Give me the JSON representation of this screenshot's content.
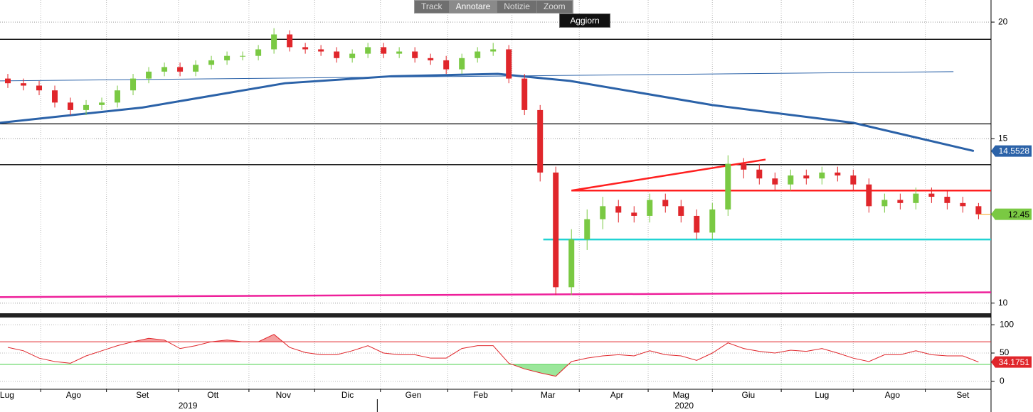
{
  "toolbar": {
    "buttons": [
      "Track",
      "Annotare",
      "Notizie",
      "Zoom"
    ],
    "refresh": "Aggiorn"
  },
  "chart_data": [
    {
      "type": "candlestick",
      "log_scale": true,
      "ylim": [
        9.77,
        21.12
      ],
      "yticks": [
        10,
        15,
        20
      ],
      "grid": true,
      "xlim": [
        0,
        63.3
      ],
      "xticks": [
        {
          "value": 0.45,
          "label": "Lug"
        },
        {
          "value": 4.7,
          "label": "Ago"
        },
        {
          "value": 9.1,
          "label": "Set"
        },
        {
          "value": 13.6,
          "label": "Ott"
        },
        {
          "value": 18.1,
          "label": "Nov"
        },
        {
          "value": 22.2,
          "label": "Dic"
        },
        {
          "value": 26.4,
          "label": "Gen"
        },
        {
          "value": 30.7,
          "label": "Feb"
        },
        {
          "value": 35.0,
          "label": "Mar"
        },
        {
          "value": 39.4,
          "label": "Apr"
        },
        {
          "value": 43.5,
          "label": "Mag"
        },
        {
          "value": 47.8,
          "label": "Giu"
        },
        {
          "value": 52.5,
          "label": "Lug"
        },
        {
          "value": 57.0,
          "label": "Ago"
        },
        {
          "value": 61.5,
          "label": "Set"
        }
      ],
      "xgrid": [
        2.6,
        6.8,
        11.4,
        15.9,
        20.1,
        24.3,
        28.6,
        32.7,
        37.0,
        41.4,
        45.5,
        49.9,
        54.5,
        59.1
      ],
      "years": [
        {
          "value": 12.0,
          "label": "2019"
        },
        {
          "value": 43.7,
          "label": "2020"
        }
      ],
      "year_divider": 24.1,
      "up_color": "#7ac943",
      "down_color": "#e0262b",
      "x": [
        0.5,
        1.5,
        2.5,
        3.5,
        4.5,
        5.5,
        6.5,
        7.5,
        8.5,
        9.5,
        10.5,
        11.5,
        12.5,
        13.5,
        14.5,
        15.5,
        16.5,
        17.5,
        18.5,
        19.5,
        20.5,
        21.5,
        22.5,
        23.5,
        24.5,
        25.5,
        26.5,
        27.5,
        28.5,
        29.5,
        30.5,
        31.5,
        32.5,
        33.5,
        34.5,
        35.5,
        36.5,
        37.5,
        38.5,
        39.5,
        40.5,
        41.5,
        42.5,
        43.5,
        44.5,
        45.5,
        46.5,
        47.5,
        48.5,
        49.5,
        50.5,
        51.5,
        52.5,
        53.5,
        54.5,
        55.5,
        56.5,
        57.5,
        58.5,
        59.5,
        60.5,
        61.5,
        62.5
      ],
      "open": [
        17.4,
        17.2,
        17.1,
        16.9,
        16.4,
        16.1,
        16.3,
        16.4,
        16.9,
        17.4,
        17.7,
        17.9,
        17.7,
        18.0,
        18.2,
        18.4,
        18.4,
        18.7,
        19.4,
        18.8,
        18.7,
        18.6,
        18.3,
        18.5,
        18.8,
        18.5,
        18.6,
        18.3,
        18.2,
        17.8,
        18.3,
        18.6,
        18.7,
        17.4,
        16.1,
        13.8,
        10.4,
        11.7,
        12.3,
        12.7,
        12.5,
        12.4,
        12.9,
        12.7,
        12.4,
        11.9,
        12.6,
        14.1,
        13.9,
        13.6,
        13.4,
        13.7,
        13.6,
        13.8,
        13.7,
        13.4,
        12.7,
        12.9,
        12.8,
        13.1,
        13.0,
        12.8,
        12.7
      ],
      "high": [
        17.6,
        17.4,
        17.3,
        17.1,
        16.6,
        16.5,
        16.6,
        17.1,
        17.6,
        17.9,
        18.1,
        18.1,
        18.2,
        18.4,
        18.6,
        18.6,
        18.9,
        19.7,
        19.6,
        19.0,
        18.9,
        18.8,
        18.7,
        19.0,
        19.0,
        18.8,
        18.8,
        18.5,
        18.4,
        18.5,
        18.8,
        19.0,
        18.9,
        17.6,
        16.3,
        14.0,
        12.0,
        12.6,
        13.0,
        12.9,
        12.7,
        13.1,
        13.1,
        12.9,
        12.6,
        12.8,
        14.4,
        14.3,
        14.1,
        13.8,
        13.9,
        13.9,
        14.0,
        14.0,
        13.9,
        13.6,
        13.1,
        13.1,
        13.3,
        13.3,
        13.2,
        13.0,
        12.8
      ],
      "low": [
        17.0,
        16.9,
        16.7,
        16.2,
        15.9,
        15.9,
        16.1,
        16.2,
        16.7,
        17.2,
        17.5,
        17.5,
        17.5,
        17.8,
        18.0,
        18.2,
        18.2,
        18.5,
        18.6,
        18.5,
        18.4,
        18.1,
        18.1,
        18.3,
        18.3,
        18.3,
        18.1,
        18.0,
        17.6,
        17.6,
        18.1,
        18.4,
        17.2,
        15.9,
        13.5,
        10.2,
        10.2,
        11.4,
        12.0,
        12.2,
        12.2,
        12.2,
        12.5,
        12.2,
        11.7,
        11.7,
        12.4,
        13.6,
        13.4,
        13.2,
        13.2,
        13.4,
        13.4,
        13.5,
        13.2,
        12.5,
        12.5,
        12.6,
        12.6,
        12.8,
        12.6,
        12.5,
        12.3
      ],
      "close": [
        17.2,
        17.1,
        16.9,
        16.4,
        16.1,
        16.3,
        16.4,
        16.9,
        17.4,
        17.7,
        17.9,
        17.7,
        18.0,
        18.2,
        18.4,
        18.4,
        18.7,
        19.4,
        18.8,
        18.7,
        18.6,
        18.3,
        18.5,
        18.8,
        18.5,
        18.6,
        18.3,
        18.2,
        17.8,
        18.3,
        18.6,
        18.7,
        17.4,
        16.1,
        13.8,
        10.4,
        11.7,
        12.3,
        12.7,
        12.5,
        12.4,
        12.9,
        12.7,
        12.4,
        11.9,
        12.6,
        14.1,
        13.9,
        13.6,
        13.4,
        13.7,
        13.6,
        13.8,
        13.7,
        13.4,
        12.7,
        12.9,
        12.8,
        13.1,
        13.0,
        12.8,
        12.7,
        12.45
      ],
      "moving_average": {
        "color": "#2b62a8",
        "x": [
          0,
          9.1,
          18.2,
          25,
          31.8,
          36.4,
          45.5,
          54.5,
          62.2
        ],
        "values": [
          15.6,
          16.2,
          17.2,
          17.5,
          17.6,
          17.3,
          16.3,
          15.6,
          14.5528
        ]
      },
      "lines": [
        {
          "color": "#000000",
          "x": [
            0,
            63.3
          ],
          "y": [
            19.17,
            19.17
          ]
        },
        {
          "color": "#000000",
          "x": [
            0,
            63.3
          ],
          "y": [
            15.56,
            15.56
          ]
        },
        {
          "color": "#000000",
          "x": [
            0,
            63.3
          ],
          "y": [
            14.07,
            14.07
          ]
        },
        {
          "color": "#2b62a8",
          "x": [
            0,
            60.9
          ],
          "y": [
            17.3,
            17.7
          ]
        },
        {
          "color": "#ff1f1f",
          "x": [
            36.5,
            63.3
          ],
          "y": [
            13.2,
            13.2
          ]
        },
        {
          "color": "#ff1f1f",
          "x": [
            36.5,
            48.9
          ],
          "y": [
            13.2,
            14.25
          ]
        },
        {
          "color": "#22d3d3",
          "x": [
            34.7,
            63.3
          ],
          "y": [
            11.7,
            11.7
          ]
        },
        {
          "color": "#ee1f9a",
          "x": [
            0,
            63.3
          ],
          "y": [
            10.15,
            10.27
          ]
        }
      ]
    },
    {
      "type": "line",
      "color": "#e0262b",
      "ylim": [
        -14,
        109
      ],
      "yticks": [
        0,
        50,
        100
      ],
      "levels": [
        {
          "value": 70,
          "color": "#e0262b"
        },
        {
          "value": 30,
          "color": "#4cd04c"
        }
      ],
      "x": [
        0.5,
        1.5,
        2.5,
        3.5,
        4.5,
        5.5,
        6.5,
        7.5,
        8.5,
        9.5,
        10.5,
        11.5,
        12.5,
        13.5,
        14.5,
        15.5,
        16.5,
        17.5,
        18.5,
        19.5,
        20.5,
        21.5,
        22.5,
        23.5,
        24.5,
        25.5,
        26.5,
        27.5,
        28.5,
        29.5,
        30.5,
        31.5,
        32.5,
        33.5,
        34.5,
        35.5,
        36.5,
        37.5,
        38.5,
        39.5,
        40.5,
        41.5,
        42.5,
        43.5,
        44.5,
        45.5,
        46.5,
        47.5,
        48.5,
        49.5,
        50.5,
        51.5,
        52.5,
        53.5,
        54.5,
        55.5,
        56.5,
        57.5,
        58.5,
        59.5,
        60.5,
        61.5,
        62.5
      ],
      "values": [
        60,
        54,
        41,
        35,
        32,
        45,
        54,
        63,
        70,
        76,
        73,
        58,
        63,
        70,
        73,
        70,
        70,
        83,
        60,
        51,
        47,
        47,
        54,
        63,
        50,
        47,
        47,
        41,
        41,
        58,
        63,
        63,
        32,
        22,
        15,
        9,
        35,
        41,
        45,
        47,
        45,
        54,
        47,
        45,
        37,
        50,
        68,
        58,
        53,
        50,
        55,
        53,
        58,
        50,
        41,
        35,
        47,
        47,
        54,
        47,
        45,
        45,
        34.1751
      ]
    }
  ]
}
